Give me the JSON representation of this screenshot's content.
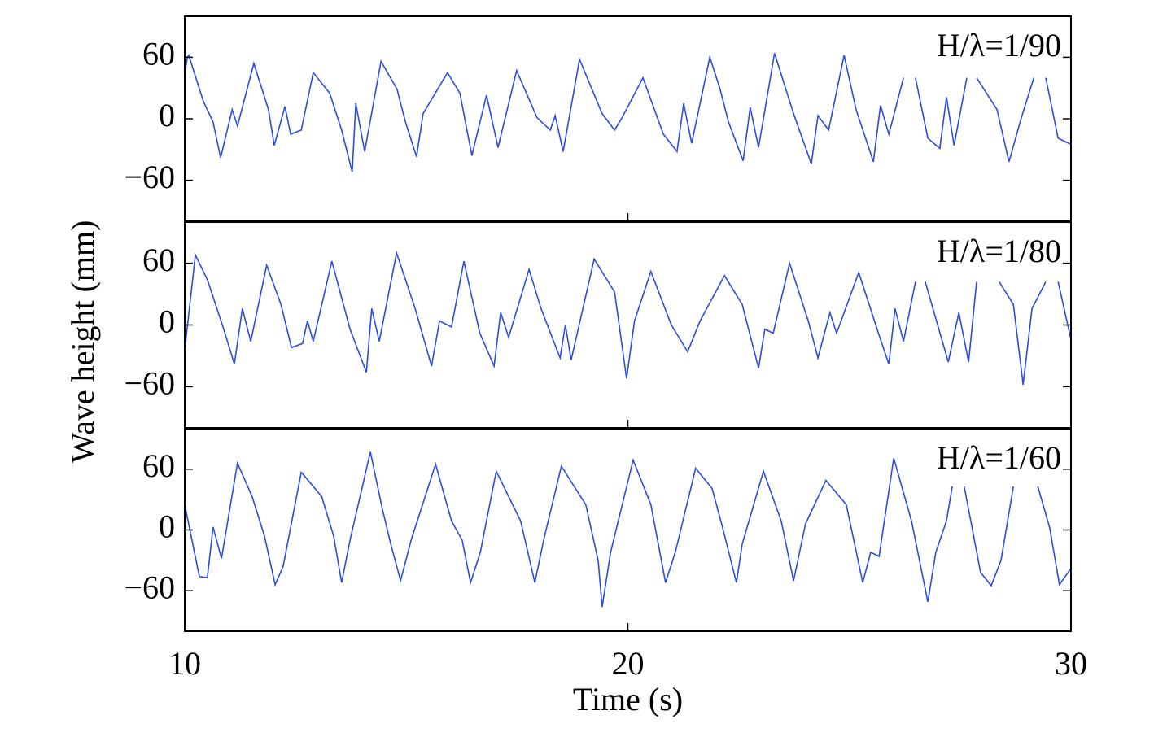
{
  "chart_data": [
    {
      "type": "line",
      "annotation": "H/λ=1/90",
      "color": "#2b4ce0",
      "xlim": [
        10,
        30
      ],
      "xticks": [
        10,
        20,
        30
      ],
      "ylim": [
        -100,
        100
      ],
      "yticks": [
        {
          "value": -60,
          "label": "−60"
        },
        0,
        60
      ],
      "x": [
        10.0,
        10.06,
        10.09,
        10.42,
        10.64,
        10.81,
        11.07,
        11.19,
        11.56,
        11.89,
        12.02,
        12.26,
        12.39,
        12.63,
        12.9,
        13.27,
        13.54,
        13.78,
        13.86,
        14.06,
        14.43,
        14.79,
        14.98,
        15.23,
        15.38,
        15.93,
        16.21,
        16.48,
        16.81,
        17.07,
        17.49,
        17.95,
        18.25,
        18.36,
        18.54,
        18.91,
        19.42,
        19.7,
        19.88,
        20.34,
        20.8,
        21.11,
        21.26,
        21.44,
        21.85,
        22.08,
        22.27,
        22.6,
        22.76,
        22.95,
        23.31,
        23.74,
        24.14,
        24.29,
        24.53,
        24.88,
        25.15,
        25.54,
        25.7,
        25.89,
        26.22,
        26.31,
        26.49,
        26.77,
        27.04,
        27.19,
        27.36,
        27.65,
        27.76,
        27.87,
        28.33,
        28.6,
        28.88,
        29.16,
        29.3,
        29.43,
        29.71,
        30.0
      ],
      "values": [
        45,
        60,
        62,
        17,
        -3,
        -38,
        9,
        -7,
        54,
        9,
        -26,
        12,
        -15,
        -11,
        45,
        25,
        -11,
        -52,
        15,
        -32,
        56,
        29,
        -3,
        -37,
        5,
        45,
        25,
        -36,
        23,
        -28,
        47,
        1,
        -11,
        3,
        -32,
        58,
        5,
        -11,
        2,
        40,
        -15,
        -32,
        15,
        -24,
        60,
        29,
        -3,
        -41,
        11,
        -28,
        64,
        5,
        -44,
        3,
        -11,
        62,
        9,
        -42,
        13,
        -15,
        40,
        null,
        40,
        -19,
        -29,
        21,
        -26,
        40,
        null,
        40,
        9,
        -42,
        1,
        40,
        null,
        40,
        -19,
        -25
      ]
    },
    {
      "type": "line",
      "annotation": "H/λ=1/80",
      "color": "#2b4ce0",
      "ylabel": "Wave height (mm)",
      "xlim": [
        10,
        30
      ],
      "xticks": [
        10,
        20,
        30
      ],
      "ylim": [
        -100,
        100
      ],
      "yticks": [
        {
          "value": -60,
          "label": "−60"
        },
        0,
        60
      ],
      "x": [
        10.0,
        10.24,
        10.51,
        10.88,
        11.12,
        11.3,
        11.49,
        11.85,
        12.17,
        12.41,
        12.66,
        12.77,
        12.9,
        13.32,
        13.73,
        14.1,
        14.22,
        14.39,
        14.78,
        15.2,
        15.57,
        15.75,
        16.02,
        16.3,
        16.66,
        16.98,
        17.13,
        17.31,
        17.77,
        18.04,
        18.47,
        18.59,
        18.72,
        19.24,
        19.7,
        19.97,
        20.15,
        20.52,
        20.98,
        21.35,
        21.63,
        22.18,
        22.58,
        22.95,
        23.09,
        23.28,
        23.65,
        24.07,
        24.29,
        24.56,
        24.71,
        25.21,
        25.67,
        25.89,
        26.03,
        26.22,
        26.49,
        26.58,
        26.71,
        27.23,
        27.47,
        27.69,
        27.87,
        28.15,
        28.38,
        28.7,
        28.92,
        29.12,
        29.43,
        29.56,
        29.71,
        30.0
      ],
      "values": [
        -24,
        68,
        44,
        -4,
        -38,
        16,
        -16,
        58,
        20,
        -22,
        -18,
        4,
        -16,
        62,
        -4,
        -46,
        16,
        -16,
        70,
        16,
        -40,
        4,
        -2,
        62,
        -8,
        -40,
        12,
        -12,
        54,
        16,
        -32,
        0,
        -34,
        64,
        32,
        -52,
        4,
        52,
        0,
        -26,
        4,
        48,
        20,
        -42,
        -4,
        -8,
        60,
        4,
        -32,
        12,
        -8,
        51,
        -10,
        -38,
        16,
        -16,
        42,
        null,
        42,
        -36,
        12,
        -36,
        42,
        null,
        42,
        20,
        -58,
        16,
        42,
        null,
        42,
        -14
      ]
    },
    {
      "type": "line",
      "annotation": "H/λ=1/60",
      "color": "#2b4ce0",
      "xlabel": "Time (s)",
      "xlim": [
        10,
        30
      ],
      "xticks": [
        10,
        20,
        30
      ],
      "ylim": [
        -100,
        100
      ],
      "yticks": [
        {
          "value": -60,
          "label": "−60"
        },
        0,
        60
      ],
      "x": [
        10.0,
        10.33,
        10.51,
        10.64,
        10.83,
        11.19,
        11.52,
        11.8,
        12.04,
        12.22,
        12.63,
        13.09,
        13.36,
        13.54,
        13.73,
        14.19,
        14.46,
        14.65,
        14.87,
        15.11,
        15.66,
        16.02,
        16.26,
        16.45,
        16.67,
        17.03,
        17.58,
        17.9,
        18.1,
        18.5,
        19.05,
        19.33,
        19.42,
        19.61,
        20.12,
        20.52,
        20.85,
        21.07,
        21.53,
        21.9,
        22.14,
        22.45,
        22.58,
        23.06,
        23.46,
        23.74,
        24.01,
        24.47,
        24.93,
        25.3,
        25.48,
        25.67,
        26.0,
        26.4,
        26.77,
        26.95,
        27.19,
        27.32,
        27.41,
        27.59,
        27.96,
        28.2,
        28.42,
        28.7,
        29.01,
        29.25,
        29.52,
        29.74,
        30.0
      ],
      "values": [
        25,
        -46,
        -47,
        3,
        -28,
        66,
        33,
        -6,
        -54,
        -36,
        57,
        33,
        -6,
        -52,
        -10,
        77,
        21,
        -14,
        -50,
        -10,
        65,
        9,
        -10,
        -52,
        -22,
        58,
        9,
        -52,
        -10,
        63,
        25,
        -30,
        -76,
        -22,
        69,
        25,
        -52,
        -22,
        61,
        41,
        2,
        -52,
        -14,
        58,
        9,
        -50,
        6,
        49,
        25,
        -52,
        -22,
        -26,
        71,
        9,
        -71,
        -22,
        9,
        43,
        null,
        43,
        -42,
        -55,
        -30,
        43,
        null,
        43,
        2,
        -54,
        -38
      ]
    }
  ]
}
